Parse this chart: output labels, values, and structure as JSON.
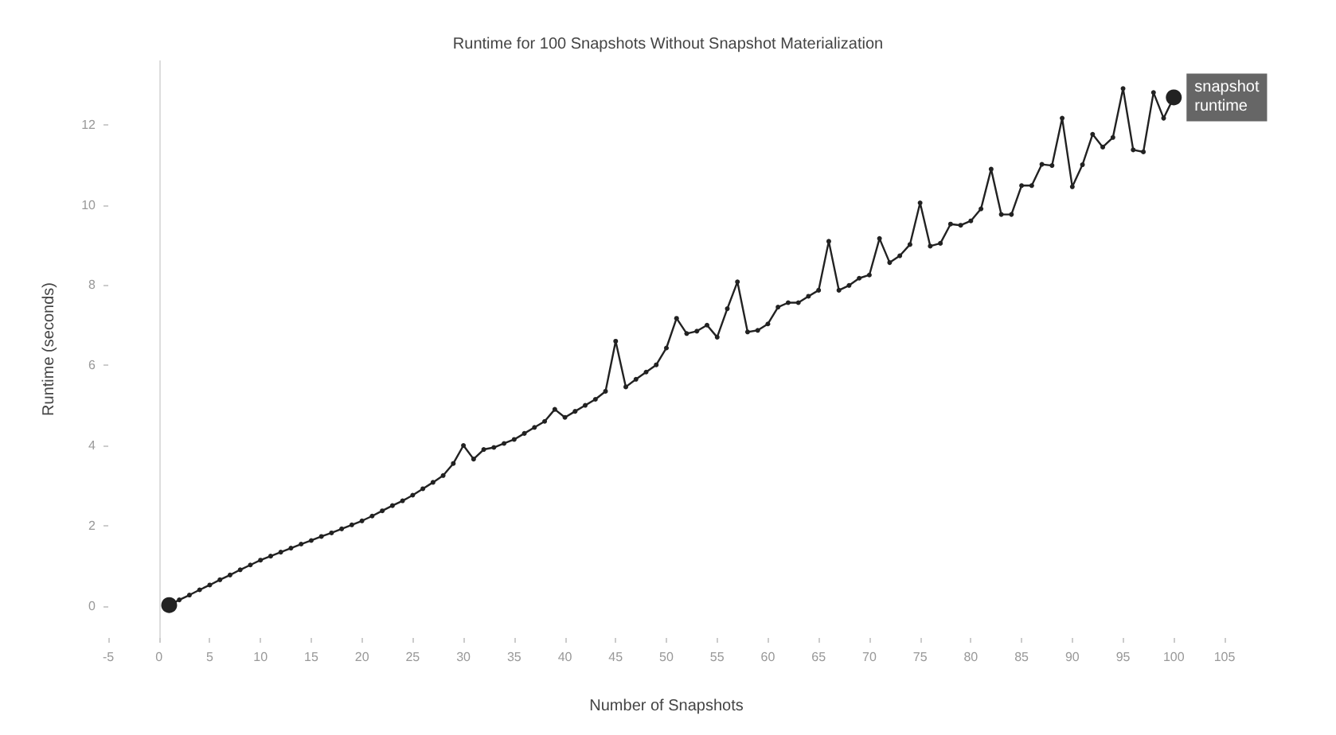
{
  "chart_data": {
    "type": "line",
    "title": "Runtime for 100 Snapshots Without Snapshot Materialization",
    "xlabel": "Number of Snapshots",
    "ylabel": "Runtime (seconds)",
    "x": [
      1,
      2,
      3,
      4,
      5,
      6,
      7,
      8,
      9,
      10,
      11,
      12,
      13,
      14,
      15,
      16,
      17,
      18,
      19,
      20,
      21,
      22,
      23,
      24,
      25,
      26,
      27,
      28,
      29,
      30,
      31,
      32,
      33,
      34,
      35,
      36,
      37,
      38,
      39,
      40,
      41,
      42,
      43,
      44,
      45,
      46,
      47,
      48,
      49,
      50,
      51,
      52,
      53,
      54,
      55,
      56,
      57,
      58,
      59,
      60,
      61,
      62,
      63,
      64,
      65,
      66,
      67,
      68,
      69,
      70,
      71,
      72,
      73,
      74,
      75,
      76,
      77,
      78,
      79,
      80,
      81,
      82,
      83,
      84,
      85,
      86,
      87,
      88,
      89,
      90,
      91,
      92,
      93,
      94,
      95,
      96,
      97,
      98,
      99,
      100
    ],
    "series": [
      {
        "color": "#222222",
        "values": [
          0.02,
          0.15,
          0.27,
          0.4,
          0.52,
          0.65,
          0.77,
          0.9,
          1.02,
          1.14,
          1.24,
          1.34,
          1.44,
          1.54,
          1.63,
          1.73,
          1.82,
          1.92,
          2.02,
          2.12,
          2.24,
          2.37,
          2.5,
          2.62,
          2.76,
          2.92,
          3.08,
          3.25,
          3.55,
          4.0,
          3.66,
          3.9,
          3.95,
          4.05,
          4.15,
          4.3,
          4.45,
          4.6,
          4.9,
          4.7,
          4.85,
          5.0,
          5.15,
          5.35,
          6.6,
          5.46,
          5.65,
          5.83,
          6.01,
          6.43,
          7.17,
          6.79,
          6.85,
          7.0,
          6.7,
          7.41,
          8.08,
          6.83,
          6.87,
          7.03,
          7.45,
          7.56,
          7.56,
          7.72,
          7.87,
          9.09,
          7.87,
          7.99,
          8.17,
          8.25,
          9.16,
          8.56,
          8.73,
          9.01,
          10.05,
          8.97,
          9.04,
          9.52,
          9.49,
          9.6,
          9.9,
          10.89,
          9.76,
          9.76,
          10.48,
          10.48,
          11.01,
          10.98,
          12.16,
          10.45,
          11.0,
          11.76,
          11.44,
          11.68,
          12.9,
          11.37,
          11.32,
          12.8,
          12.16,
          12.68
        ]
      }
    ],
    "annotations": [
      {
        "text": "snapshot runtime",
        "x": 100,
        "y": 12.68
      }
    ],
    "xlim": [
      -5,
      105
    ],
    "xticks": [
      -5,
      0,
      5,
      10,
      15,
      20,
      25,
      30,
      35,
      40,
      45,
      50,
      55,
      60,
      65,
      70,
      75,
      80,
      85,
      90,
      95,
      100,
      105
    ],
    "ylim": [
      -0.8,
      13.6
    ],
    "yticks": [
      0,
      2,
      4,
      6,
      8,
      10,
      12
    ],
    "ref_lines": [
      {
        "axis": "x",
        "value": 0,
        "color": "#dddddd"
      }
    ],
    "marker": "circle",
    "line_style": "solid",
    "grid": false
  }
}
